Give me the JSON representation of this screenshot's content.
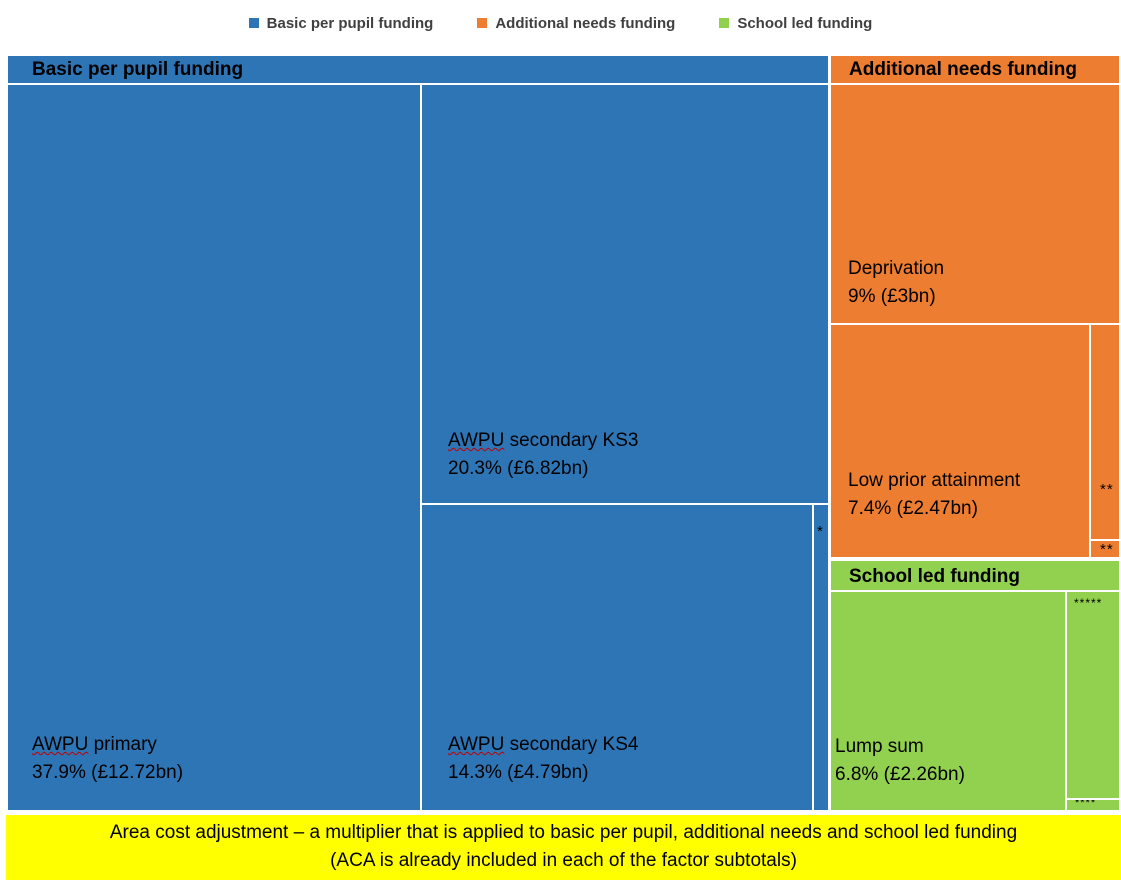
{
  "chart_data": {
    "type": "treemap",
    "legend": [
      {
        "label": "Basic per pupil funding",
        "color": "#2e75b6"
      },
      {
        "label": "Additional needs funding",
        "color": "#ed7d31"
      },
      {
        "label": "School led funding",
        "color": "#92d050"
      }
    ],
    "groups": [
      {
        "name": "Basic per pupil funding",
        "color": "#2e75b6",
        "items": [
          {
            "name": "AWPU primary",
            "value_label": "37.9% (£12.72bn)",
            "percent": 37.9,
            "value_bn": 12.72
          },
          {
            "name": "AWPU secondary KS3",
            "value_label": "20.3% (£6.82bn)",
            "percent": 20.3,
            "value_bn": 6.82
          },
          {
            "name": "AWPU secondary KS4",
            "value_label": "14.3% (£4.79bn)",
            "percent": 14.3,
            "value_bn": 4.79
          },
          {
            "name": "*",
            "value_label": "",
            "percent": null,
            "value_bn": null
          }
        ]
      },
      {
        "name": "Additional needs funding",
        "color": "#ed7d31",
        "items": [
          {
            "name": "Deprivation",
            "value_label": "9% (£3bn)",
            "percent": 9,
            "value_bn": 3
          },
          {
            "name": "Low prior attainment",
            "value_label": "7.4% (£2.47bn)",
            "percent": 7.4,
            "value_bn": 2.47
          },
          {
            "name": "**",
            "value_label": "",
            "percent": null,
            "value_bn": null
          },
          {
            "name": "**",
            "value_label": "",
            "percent": null,
            "value_bn": null
          }
        ]
      },
      {
        "name": "School led funding",
        "color": "#92d050",
        "items": [
          {
            "name": "Lump sum",
            "value_label": "6.8% (£2.26bn)",
            "percent": 6.8,
            "value_bn": 2.26
          },
          {
            "name": "*****",
            "value_label": "",
            "percent": null,
            "value_bn": null
          },
          {
            "name": "****",
            "value_label": "",
            "percent": null,
            "value_bn": null
          }
        ]
      }
    ],
    "footer": {
      "line1": "Area cost adjustment – a multiplier that is applied to basic per pupil, additional needs and school led funding",
      "line2": "(ACA is already included in each of the factor subtotals)"
    }
  }
}
